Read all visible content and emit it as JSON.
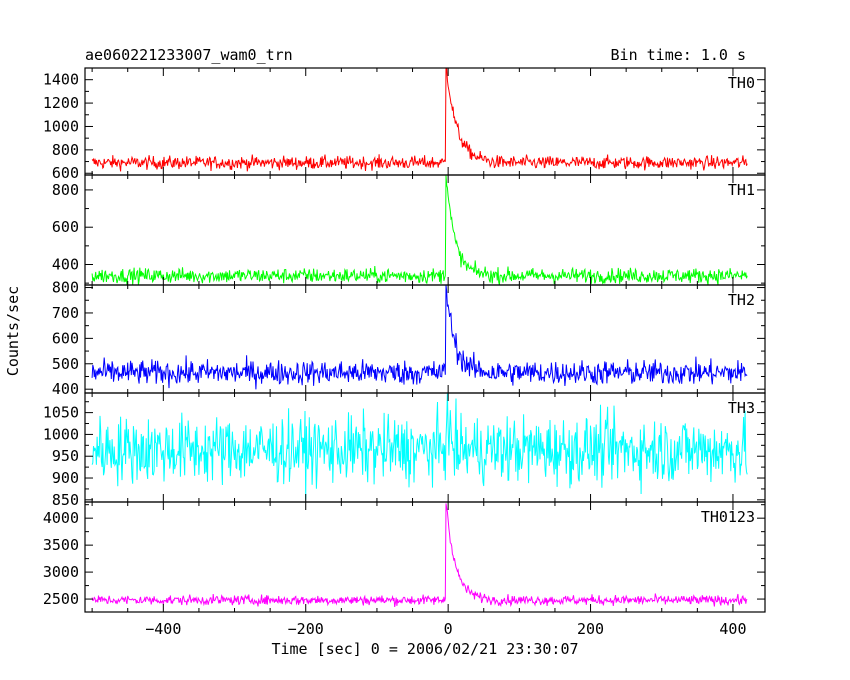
{
  "header": {
    "title": "ae060221233007_wam0_trn",
    "bin_time": "Bin time: 1.0 s"
  },
  "chart_data": {
    "type": "line",
    "title": "ae060221233007_wam0_trn",
    "subtitle": "Bin time: 1.0 s",
    "xlabel": "Time [sec] 0 = 2006/02/21 23:30:07",
    "ylabel": "Counts/sec",
    "xlim": [
      -510,
      445
    ],
    "x_range": [
      -500,
      420
    ],
    "peak_time": -3,
    "x_ticks": [
      -400,
      -200,
      0,
      200,
      400
    ],
    "x_tick_labels": [
      "−400",
      "−200",
      "0",
      "200",
      "400"
    ],
    "grid": false,
    "panels": [
      {
        "name": "TH0",
        "color": "#ff0000",
        "ylim": [
          585,
          1500
        ],
        "yticks": [
          600,
          800,
          1000,
          1200,
          1400
        ],
        "ytick_labels": [
          "600",
          "800",
          "1000",
          "1200",
          "1400"
        ],
        "baseline": 690,
        "noise": 28,
        "peak": 1500,
        "decay": 14
      },
      {
        "name": "TH1",
        "color": "#00ff00",
        "ylim": [
          290,
          880
        ],
        "yticks": [
          400,
          600,
          800
        ],
        "ytick_labels": [
          "400",
          "600",
          "800"
        ],
        "baseline": 340,
        "noise": 20,
        "peak": 880,
        "decay": 11
      },
      {
        "name": "TH2",
        "color": "#0000ff",
        "ylim": [
          385,
          810
        ],
        "yticks": [
          400,
          500,
          600,
          700,
          800
        ],
        "ytick_labels": [
          "400",
          "500",
          "600",
          "700",
          "800"
        ],
        "baseline": 465,
        "noise": 24,
        "peak": 800,
        "decay": 11
      },
      {
        "name": "TH3",
        "color": "#00ffff",
        "ylim": [
          845,
          1095
        ],
        "yticks": [
          850,
          900,
          950,
          1000,
          1050
        ],
        "ytick_labels": [
          "850",
          "900",
          "950",
          "1000",
          "1050"
        ],
        "baseline": 965,
        "noise": 38,
        "peak": 1080,
        "decay": 4
      },
      {
        "name": "TH0123",
        "color": "#ff00ff",
        "ylim": [
          2260,
          4300
        ],
        "yticks": [
          2500,
          3000,
          3500,
          4000
        ],
        "ytick_labels": [
          "2500",
          "3000",
          "3500",
          "4000"
        ],
        "baseline": 2480,
        "noise": 45,
        "peak": 4250,
        "decay": 12
      }
    ]
  }
}
